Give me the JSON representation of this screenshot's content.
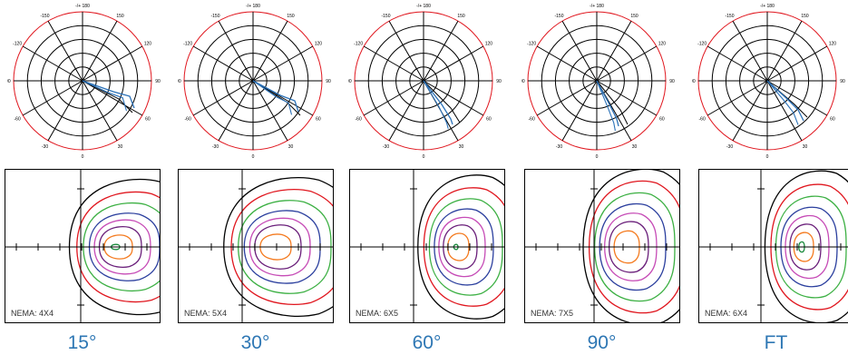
{
  "colors": {
    "caption": "#2e77b4",
    "polar_outer_ring": "#e0161e",
    "polar_curve": "#2c72b8",
    "contours": [
      "#000000",
      "#e0161e",
      "#3cb043",
      "#2b3f9e",
      "#c64bb6",
      "#6a1f7a",
      "#f47b20",
      "#1a8a3c"
    ]
  },
  "angle_labels": [
    "-/+ 180",
    "150",
    "120",
    "90",
    "60",
    "30",
    "0",
    "-30",
    "-60",
    "-90",
    "-120",
    "-150"
  ],
  "panels": [
    {
      "caption": "15°",
      "nema": "NEMA: 4X4"
    },
    {
      "caption": "30°",
      "nema": "NEMA: 5X4"
    },
    {
      "caption": "60°",
      "nema": "NEMA: 6X5"
    },
    {
      "caption": "90°",
      "nema": "NEMA: 7X5"
    },
    {
      "caption": "FT",
      "nema": "NEMA: 6X4"
    }
  ]
}
